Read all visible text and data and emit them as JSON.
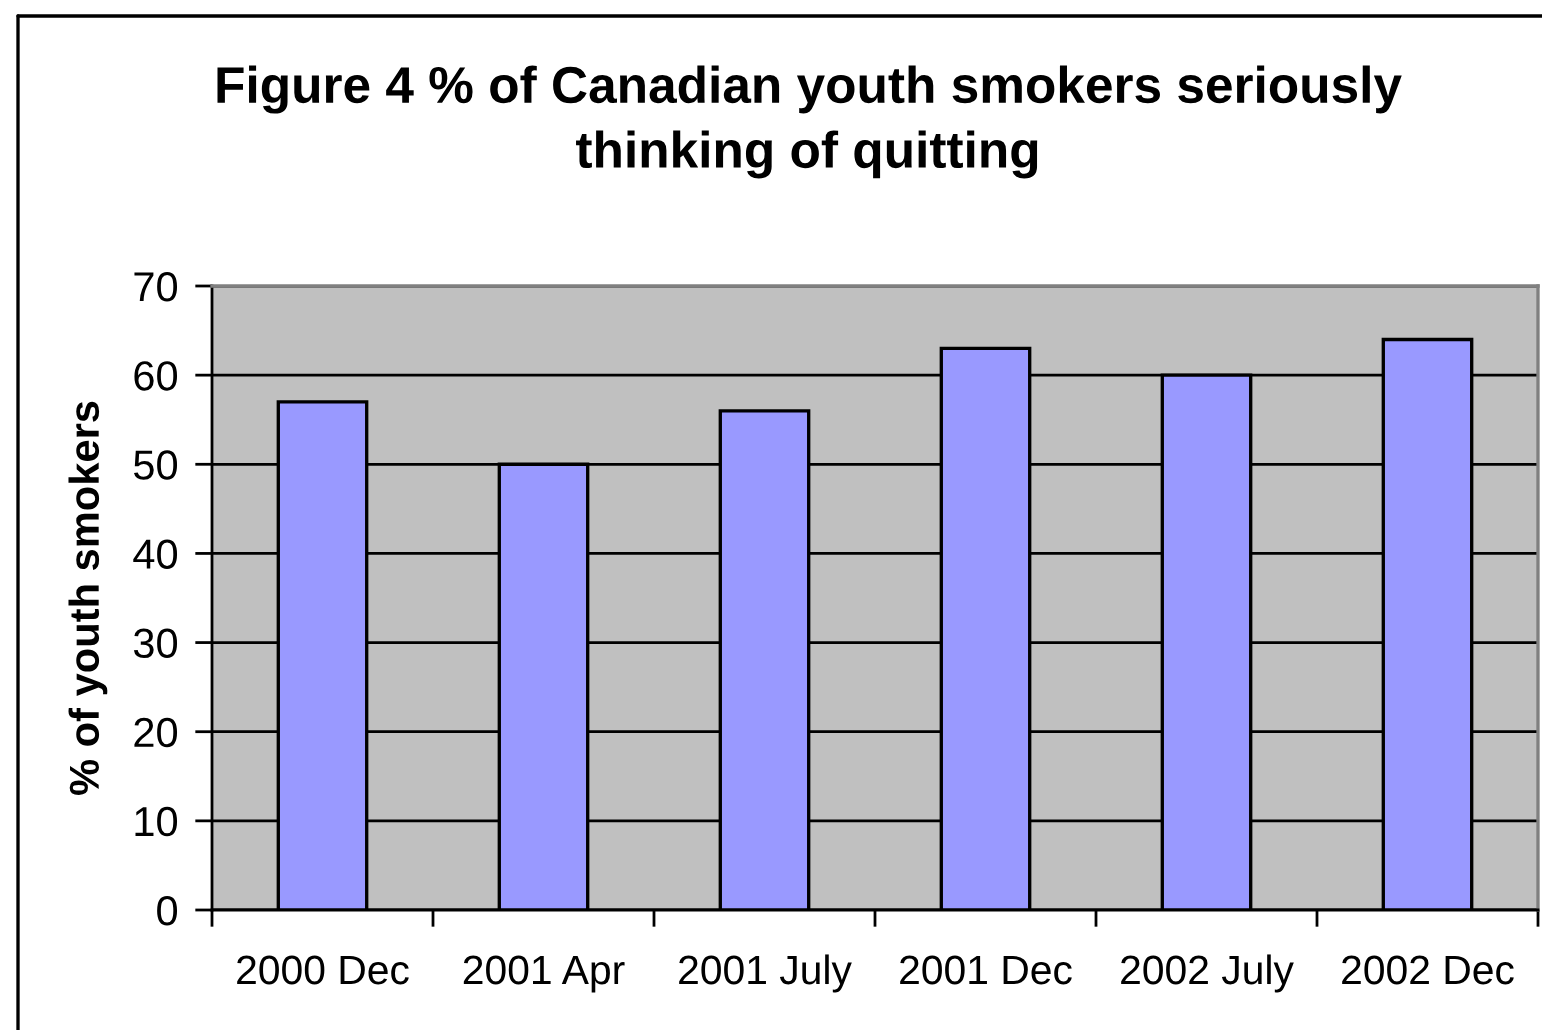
{
  "chart_data": {
    "type": "bar",
    "title": "Figure 4 % of Canadian youth smokers seriously\nthinking of quitting",
    "ylabel": "% of youth smokers",
    "categories": [
      "2000 Dec",
      "2001 Apr",
      "2001 July",
      "2001 Dec",
      "2002 July",
      "2002 Dec"
    ],
    "values": [
      57,
      50,
      56,
      63,
      60,
      64
    ],
    "color": "#9999ff",
    "ylim": [
      0,
      70
    ],
    "yticks": [
      0,
      10,
      20,
      30,
      40,
      50,
      60,
      70
    ],
    "grid": "y"
  }
}
